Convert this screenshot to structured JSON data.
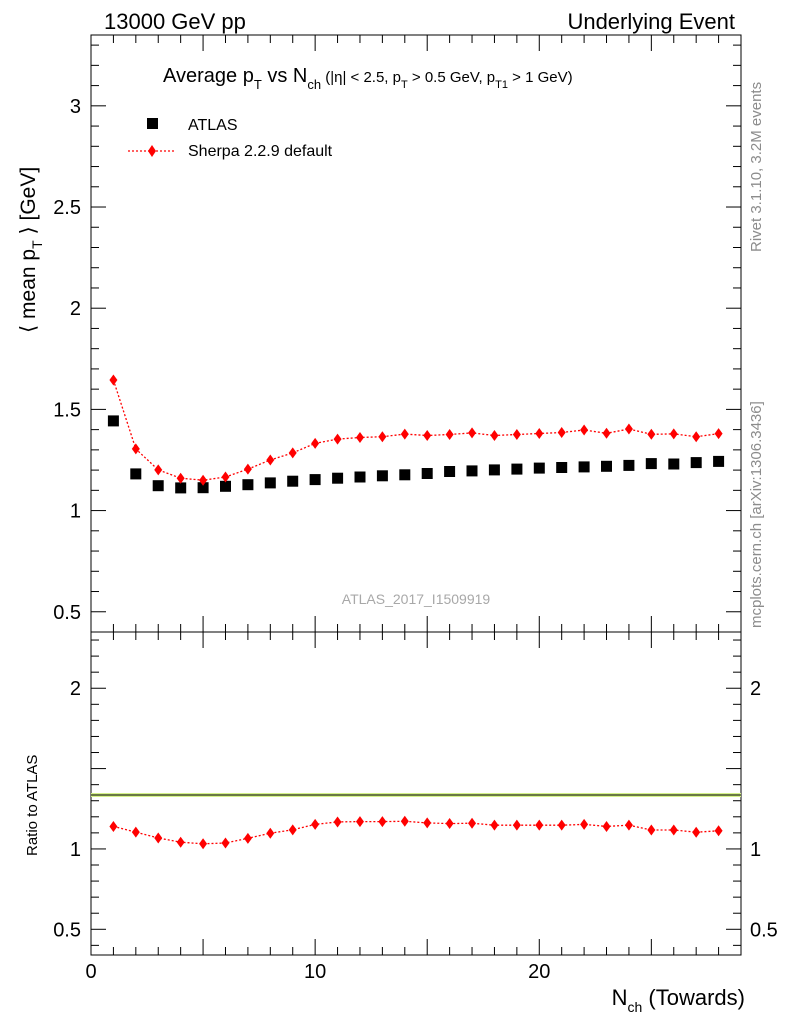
{
  "header": {
    "left": "13000 GeV pp",
    "right": "Underlying Event"
  },
  "side_labels": {
    "rivet": "Rivet 3.1.10,  3.2M events",
    "mcplots": "mcplots.cern.ch [arXiv:1306.3436]"
  },
  "chart_data": {
    "type": "scatter",
    "title": "Average p_T vs N_ch (|η| < 2.5, p_T > 0.5 GeV, p_T1 > 1 GeV)",
    "watermark": "ATLAS_2017_I1509919",
    "xlabel": "N_ch (Towards)",
    "ylabel": "⟨ mean p_T ⟩ [GeV]",
    "ratio_ylabel": "Ratio to ATLAS",
    "xlim": [
      0,
      29
    ],
    "ylim": [
      0.4,
      3.35
    ],
    "ratio_ylim": [
      0.34,
      2.35
    ],
    "xticks": [
      0,
      10,
      20
    ],
    "yticks": [
      0.5,
      1,
      1.5,
      2,
      2.5,
      3
    ],
    "ratio_yticks": [
      0.5,
      1,
      2
    ],
    "x": [
      1,
      2,
      3,
      4,
      5,
      6,
      7,
      8,
      9,
      10,
      11,
      12,
      13,
      14,
      15,
      16,
      17,
      18,
      19,
      20,
      21,
      22,
      23,
      24,
      25,
      26,
      27,
      28
    ],
    "series": [
      {
        "name": "ATLAS",
        "marker": "square",
        "color": "#000000",
        "values": [
          1.443,
          1.181,
          1.123,
          1.112,
          1.113,
          1.12,
          1.128,
          1.137,
          1.145,
          1.153,
          1.16,
          1.166,
          1.172,
          1.177,
          1.183,
          1.193,
          1.196,
          1.201,
          1.205,
          1.21,
          1.213,
          1.216,
          1.219,
          1.223,
          1.232,
          1.23,
          1.237,
          1.243
        ]
      },
      {
        "name": "Sherpa 2.2.9 default",
        "marker": "diamond",
        "line": "dotted",
        "color": "#ff0000",
        "values": [
          1.645,
          1.305,
          1.201,
          1.16,
          1.15,
          1.166,
          1.205,
          1.25,
          1.285,
          1.332,
          1.353,
          1.361,
          1.365,
          1.378,
          1.371,
          1.376,
          1.384,
          1.371,
          1.376,
          1.381,
          1.386,
          1.398,
          1.382,
          1.403,
          1.377,
          1.379,
          1.365,
          1.38
        ],
        "ratio": [
          1.14,
          1.105,
          1.068,
          1.042,
          1.032,
          1.037,
          1.066,
          1.098,
          1.119,
          1.153,
          1.168,
          1.17,
          1.17,
          1.172,
          1.162,
          1.158,
          1.16,
          1.148,
          1.148,
          1.148,
          1.148,
          1.153,
          1.14,
          1.148,
          1.118,
          1.118,
          1.104,
          1.113
        ]
      }
    ],
    "legend": "top-left"
  }
}
